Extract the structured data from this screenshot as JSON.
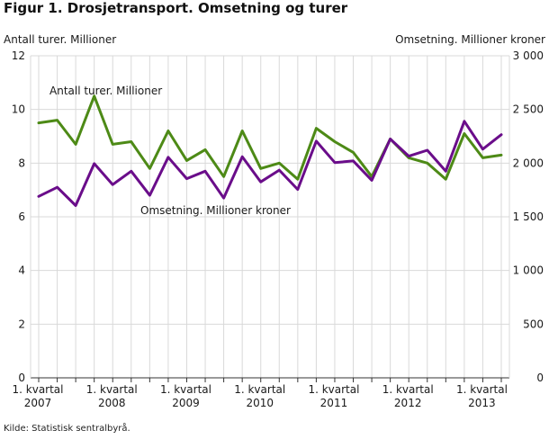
{
  "title": "Figur 1. Drosjetransport. Omsetning og turer",
  "source": "Kilde: Statistisk sentralbyrå.",
  "chart_data": {
    "type": "line",
    "title": "Figur 1. Drosjetransport. Omsetning og turer",
    "ylabel_left": "Antall turer. Millioner",
    "ylabel_right": "Omsetning. Millioner kroner",
    "ylim_left": [
      0,
      12
    ],
    "ylim_right": [
      0,
      3000
    ],
    "yticks_left": [
      "0",
      "2",
      "4",
      "6",
      "8",
      "10",
      "12"
    ],
    "yticks_right": [
      "0",
      "500",
      "1 000",
      "1 500",
      "2 000",
      "2 500",
      "3 000"
    ],
    "x_labels": [
      {
        "index": 0,
        "line1": "1. kvartal",
        "line2": "2007"
      },
      {
        "index": 4,
        "line1": "1. kvartal",
        "line2": "2008"
      },
      {
        "index": 8,
        "line1": "1. kvartal",
        "line2": "2009"
      },
      {
        "index": 12,
        "line1": "1. kvartal",
        "line2": "2010"
      },
      {
        "index": 16,
        "line1": "1. kvartal",
        "line2": "2011"
      },
      {
        "index": 20,
        "line1": "1. kvartal",
        "line2": "2012"
      },
      {
        "index": 24,
        "line1": "1. kvartal",
        "line2": "2013"
      }
    ],
    "series": [
      {
        "name": "Antall turer. Millioner",
        "axis": "left",
        "color": "#4d8a16",
        "values": [
          9.5,
          9.6,
          8.7,
          10.5,
          8.7,
          8.8,
          7.8,
          9.2,
          8.1,
          8.5,
          7.5,
          9.2,
          7.8,
          8.0,
          7.4,
          9.3,
          8.8,
          8.4,
          7.5,
          8.9,
          8.2,
          8.0,
          7.4,
          9.1,
          8.2,
          8.3
        ]
      },
      {
        "name": "Omsetning. Millioner kroner",
        "axis": "right",
        "color": "#6a0d8a",
        "values": [
          1690,
          1775,
          1605,
          1995,
          1800,
          1925,
          1700,
          2055,
          1855,
          1925,
          1675,
          2060,
          1825,
          1935,
          1755,
          2205,
          2005,
          2020,
          1840,
          2225,
          2065,
          2120,
          1925,
          2390,
          2130,
          2265
        ]
      }
    ],
    "annotations": [
      {
        "text": "Antall turer. Millioner",
        "series": 0
      },
      {
        "text": "Omsetning. Millioner kroner",
        "series": 1
      }
    ]
  }
}
